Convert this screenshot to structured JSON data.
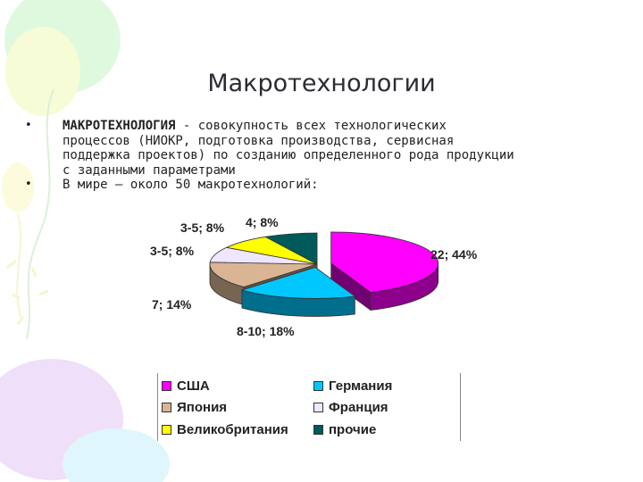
{
  "slide": {
    "title": "Макротехнологии",
    "bullets": [
      {
        "term": "МАКРОТЕХНОЛОГИЯ",
        "lines": [
          " - совокупность всех технологических",
          "процессов (НИОКР, подготовка производства, сервисная",
          "поддержка проектов) по созданию определенного рода продукции",
          "с заданными параметрами"
        ]
      },
      {
        "lines": [
          "В мире – около 50 макротехнологий:"
        ]
      }
    ]
  },
  "chart_data": {
    "type": "pie",
    "three_d": true,
    "categories": [
      "США",
      "Германия",
      "Япония",
      "Франция",
      "Великобритания",
      "прочие"
    ],
    "values": [
      44,
      18,
      14,
      8,
      8,
      8
    ],
    "data_labels": [
      "22; 44%",
      "8-10; 18%",
      "7; 14%",
      "3-5; 8%",
      "3-5; 8%",
      "4; 8%"
    ],
    "colors": [
      "#ff00ff",
      "#00c8ff",
      "#d9b594",
      "#f0e6ff",
      "#ffff00",
      "#005a5a"
    ],
    "legend_position": "bottom"
  }
}
